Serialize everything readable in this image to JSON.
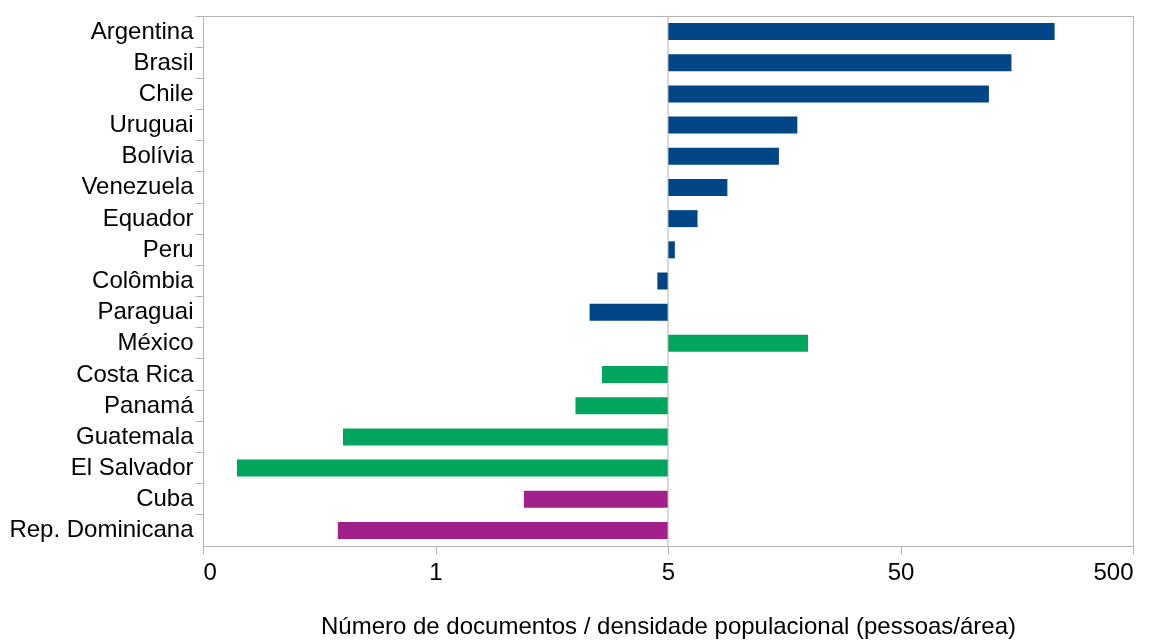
{
  "chart_data": {
    "type": "bar",
    "orientation": "horizontal",
    "xlabel": "Número de documentos / densidade populacional (pessoas/área)",
    "categories": [
      "Argentina",
      "Brasil",
      "Chile",
      "Uruguai",
      "Bolívia",
      "Venezuela",
      "Equador",
      "Peru",
      "Colômbia",
      "Paraguai",
      "México",
      "Costa Rica",
      "Panamá",
      "Guatemala",
      "El Salvador",
      "Cuba",
      "Rep. Dominicana"
    ],
    "base": [
      5,
      5,
      5,
      5,
      5,
      5,
      5,
      5,
      5,
      5,
      5,
      5,
      5,
      5,
      5,
      5,
      5
    ],
    "values": [
      225,
      145,
      115,
      13,
      10,
      4,
      1.7,
      0.35,
      -0.5,
      -2.7,
      15,
      -2.4,
      -3,
      -4.8,
      -4.93,
      -3.8,
      -4.81
    ],
    "colors": [
      "#004586",
      "#004586",
      "#004586",
      "#004586",
      "#004586",
      "#004586",
      "#004586",
      "#004586",
      "#004586",
      "#004586",
      "#00a65d",
      "#00a65d",
      "#00a65d",
      "#00a65d",
      "#00a65d",
      "#a1208a",
      "#a1208a"
    ],
    "log": "x",
    "xlim": [
      0.05,
      500
    ],
    "xticks": [
      {
        "value": 0.05,
        "label": "0"
      },
      {
        "value": 0.5,
        "label": "1"
      },
      5,
      50,
      500
    ],
    "ref_lines": [
      {
        "axis": "x",
        "value": 5,
        "color": "#b3b3b3"
      }
    ]
  }
}
